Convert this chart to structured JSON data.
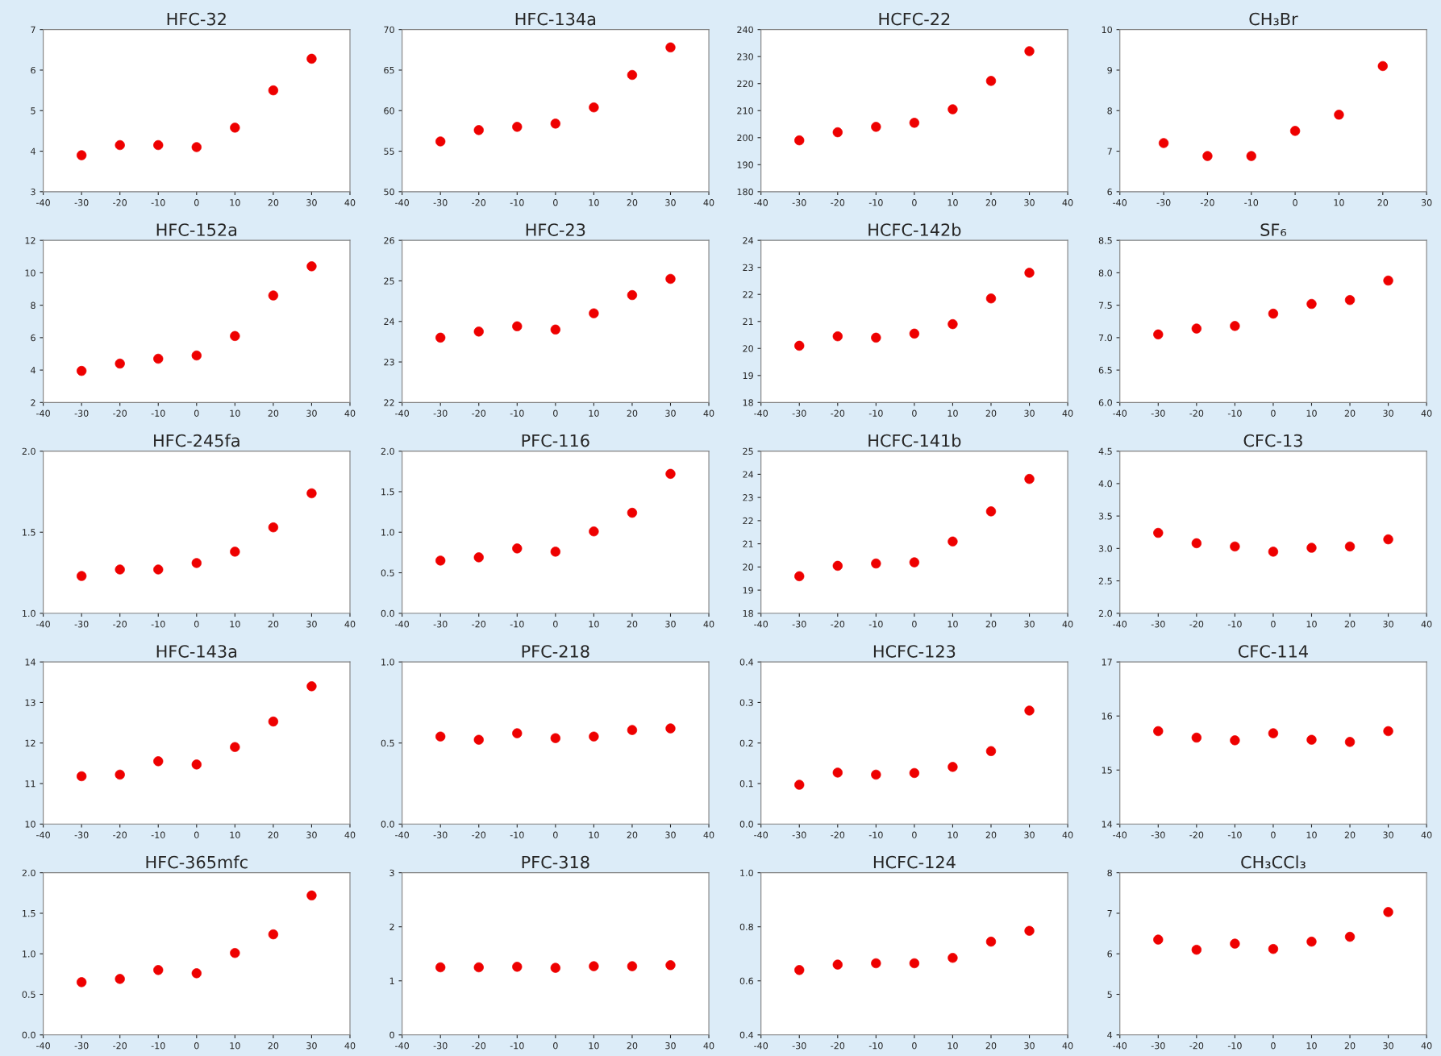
{
  "chart_data": [
    {
      "type": "scatter",
      "title": "HFC-32",
      "x": [
        -30,
        -20,
        -10,
        0,
        10,
        20,
        30
      ],
      "values": [
        3.9,
        4.15,
        4.15,
        4.1,
        4.58,
        5.5,
        6.28
      ],
      "color": "#ee0000",
      "marker": "circle",
      "xlim": [
        -40,
        40
      ],
      "xticks": [
        -40,
        -30,
        -20,
        -10,
        0,
        10,
        20,
        30,
        40
      ],
      "ylim": [
        3,
        7
      ],
      "yticks": [
        3,
        4,
        5,
        6,
        7
      ]
    },
    {
      "type": "scatter",
      "title": "HFC-134a",
      "x": [
        -30,
        -20,
        -10,
        0,
        10,
        20,
        30
      ],
      "values": [
        56.2,
        57.6,
        58.0,
        58.4,
        60.4,
        64.4,
        67.8
      ],
      "color": "#ee0000",
      "marker": "circle",
      "xlim": [
        -40,
        40
      ],
      "xticks": [
        -40,
        -30,
        -20,
        -10,
        0,
        10,
        20,
        30,
        40
      ],
      "ylim": [
        50,
        70
      ],
      "yticks": [
        50,
        55,
        60,
        65,
        70
      ]
    },
    {
      "type": "scatter",
      "title": "HCFC-22",
      "x": [
        -30,
        -20,
        -10,
        0,
        10,
        20,
        30
      ],
      "values": [
        199,
        202,
        204,
        205.5,
        210.5,
        221,
        232
      ],
      "color": "#ee0000",
      "marker": "circle",
      "xlim": [
        -40,
        40
      ],
      "xticks": [
        -40,
        -30,
        -20,
        -10,
        0,
        10,
        20,
        30,
        40
      ],
      "ylim": [
        180,
        240
      ],
      "yticks": [
        180,
        190,
        200,
        210,
        220,
        230,
        240
      ]
    },
    {
      "type": "scatter",
      "title": "CH₃Br",
      "x": [
        -30,
        -20,
        -10,
        0,
        10,
        20
      ],
      "values": [
        7.2,
        6.88,
        6.88,
        7.5,
        7.9,
        9.1
      ],
      "color": "#ee0000",
      "marker": "circle",
      "xlim": [
        -40,
        30
      ],
      "xticks": [
        -40,
        -30,
        -20,
        -10,
        0,
        10,
        20,
        30
      ],
      "ylim": [
        6,
        10
      ],
      "yticks": [
        6,
        7,
        8,
        9,
        10
      ]
    },
    {
      "type": "scatter",
      "title": "HFC-152a",
      "x": [
        -30,
        -20,
        -10,
        0,
        10,
        20,
        30
      ],
      "values": [
        3.95,
        4.4,
        4.7,
        4.9,
        6.1,
        8.6,
        10.4
      ],
      "color": "#ee0000",
      "marker": "circle",
      "xlim": [
        -40,
        40
      ],
      "xticks": [
        -40,
        -30,
        -20,
        -10,
        0,
        10,
        20,
        30,
        40
      ],
      "ylim": [
        2,
        12
      ],
      "yticks": [
        2,
        4,
        6,
        8,
        10,
        12
      ]
    },
    {
      "type": "scatter",
      "title": "HFC-23",
      "x": [
        -30,
        -20,
        -10,
        0,
        10,
        20,
        30
      ],
      "values": [
        23.6,
        23.75,
        23.88,
        23.8,
        24.2,
        24.65,
        25.05
      ],
      "color": "#ee0000",
      "marker": "circle",
      "xlim": [
        -40,
        40
      ],
      "xticks": [
        -40,
        -30,
        -20,
        -10,
        0,
        10,
        20,
        30,
        40
      ],
      "ylim": [
        22,
        26
      ],
      "yticks": [
        22,
        23,
        24,
        25,
        26
      ]
    },
    {
      "type": "scatter",
      "title": "HCFC-142b",
      "x": [
        -30,
        -20,
        -10,
        0,
        10,
        20,
        30
      ],
      "values": [
        20.1,
        20.45,
        20.4,
        20.55,
        20.9,
        21.85,
        22.8
      ],
      "color": "#ee0000",
      "marker": "circle",
      "xlim": [
        -40,
        40
      ],
      "xticks": [
        -40,
        -30,
        -20,
        -10,
        0,
        10,
        20,
        30,
        40
      ],
      "ylim": [
        18,
        24
      ],
      "yticks": [
        18,
        19,
        20,
        21,
        22,
        23,
        24
      ]
    },
    {
      "type": "scatter",
      "title": "SF₆",
      "x": [
        -30,
        -20,
        -10,
        0,
        10,
        20,
        30
      ],
      "values": [
        7.05,
        7.14,
        7.18,
        7.37,
        7.52,
        7.58,
        7.88
      ],
      "color": "#ee0000",
      "marker": "circle",
      "xlim": [
        -40,
        40
      ],
      "xticks": [
        -40,
        -30,
        -20,
        -10,
        0,
        10,
        20,
        30,
        40
      ],
      "ylim": [
        6,
        8.5
      ],
      "yticks": [
        {
          "value": 6,
          "label": "6.0"
        },
        6.5,
        {
          "value": 7,
          "label": "7.0"
        },
        7.5,
        {
          "value": 8,
          "label": "8.0"
        },
        8.5
      ]
    },
    {
      "type": "scatter",
      "title": "HFC-245fa",
      "x": [
        -30,
        -20,
        -10,
        0,
        10,
        20,
        30
      ],
      "values": [
        1.23,
        1.27,
        1.27,
        1.31,
        1.38,
        1.53,
        1.74
      ],
      "color": "#ee0000",
      "marker": "circle",
      "xlim": [
        -40,
        40
      ],
      "xticks": [
        -40,
        -30,
        -20,
        -10,
        0,
        10,
        20,
        30,
        40
      ],
      "ylim": [
        1,
        2
      ],
      "yticks": [
        {
          "value": 1,
          "label": "1.0"
        },
        1.5,
        {
          "value": 2,
          "label": "2.0"
        }
      ]
    },
    {
      "type": "scatter",
      "title": "PFC-116",
      "x": [
        -30,
        -20,
        -10,
        0,
        10,
        20,
        30
      ],
      "values": [
        0.65,
        0.69,
        0.8,
        0.76,
        1.01,
        1.24,
        1.72
      ],
      "color": "#ee0000",
      "marker": "circle",
      "xlim": [
        -40,
        40
      ],
      "xticks": [
        -40,
        -30,
        -20,
        -10,
        0,
        10,
        20,
        30,
        40
      ],
      "ylim": [
        0,
        2
      ],
      "yticks": [
        {
          "value": 0,
          "label": "0.0"
        },
        0.5,
        {
          "value": 1,
          "label": "1.0"
        },
        1.5,
        {
          "value": 2,
          "label": "2.0"
        }
      ]
    },
    {
      "type": "scatter",
      "title": "HCFC-141b",
      "x": [
        -30,
        -20,
        -10,
        0,
        10,
        20,
        30
      ],
      "values": [
        19.6,
        20.05,
        20.15,
        20.2,
        21.1,
        22.4,
        23.8
      ],
      "color": "#ee0000",
      "marker": "circle",
      "xlim": [
        -40,
        40
      ],
      "xticks": [
        -40,
        -30,
        -20,
        -10,
        0,
        10,
        20,
        30,
        40
      ],
      "ylim": [
        18,
        25
      ],
      "yticks": [
        18,
        19,
        20,
        21,
        22,
        23,
        24,
        25
      ]
    },
    {
      "type": "scatter",
      "title": "CFC-13",
      "x": [
        -30,
        -20,
        -10,
        0,
        10,
        20,
        30
      ],
      "values": [
        3.24,
        3.08,
        3.03,
        2.95,
        3.01,
        3.03,
        3.14
      ],
      "color": "#ee0000",
      "marker": "circle",
      "xlim": [
        -40,
        40
      ],
      "xticks": [
        -40,
        -30,
        -20,
        -10,
        0,
        10,
        20,
        30,
        40
      ],
      "ylim": [
        2,
        4.5
      ],
      "yticks": [
        {
          "value": 2,
          "label": "2.0"
        },
        2.5,
        {
          "value": 3,
          "label": "3.0"
        },
        3.5,
        {
          "value": 4,
          "label": "4.0"
        },
        4.5
      ]
    },
    {
      "type": "scatter",
      "title": "HFC-143a",
      "x": [
        -30,
        -20,
        -10,
        0,
        10,
        20,
        30
      ],
      "values": [
        11.18,
        11.22,
        11.55,
        11.47,
        11.9,
        12.53,
        13.4
      ],
      "color": "#ee0000",
      "marker": "circle",
      "xlim": [
        -40,
        40
      ],
      "xticks": [
        -40,
        -30,
        -20,
        -10,
        0,
        10,
        20,
        30,
        40
      ],
      "ylim": [
        10,
        14
      ],
      "yticks": [
        10,
        11,
        12,
        13,
        14
      ]
    },
    {
      "type": "scatter",
      "title": "PFC-218",
      "x": [
        -30,
        -20,
        -10,
        0,
        10,
        20,
        30
      ],
      "values": [
        0.54,
        0.52,
        0.56,
        0.53,
        0.54,
        0.58,
        0.59
      ],
      "color": "#ee0000",
      "marker": "circle",
      "xlim": [
        -40,
        40
      ],
      "xticks": [
        -40,
        -30,
        -20,
        -10,
        0,
        10,
        20,
        30,
        40
      ],
      "ylim": [
        0,
        1
      ],
      "yticks": [
        {
          "value": 0,
          "label": "0.0"
        },
        0.5,
        {
          "value": 1,
          "label": "1.0"
        }
      ]
    },
    {
      "type": "scatter",
      "title": "HCFC-123",
      "x": [
        -30,
        -20,
        -10,
        0,
        10,
        20,
        30
      ],
      "values": [
        0.097,
        0.127,
        0.122,
        0.126,
        0.141,
        0.18,
        0.28
      ],
      "color": "#ee0000",
      "marker": "circle",
      "xlim": [
        -40,
        40
      ],
      "xticks": [
        -40,
        -30,
        -20,
        -10,
        0,
        10,
        20,
        30,
        40
      ],
      "ylim": [
        0,
        0.4
      ],
      "yticks": [
        {
          "value": 0,
          "label": "0.0"
        },
        0.1,
        0.2,
        0.3,
        0.4
      ]
    },
    {
      "type": "scatter",
      "title": "CFC-114",
      "x": [
        -30,
        -20,
        -10,
        0,
        10,
        20,
        30
      ],
      "values": [
        15.72,
        15.6,
        15.55,
        15.68,
        15.56,
        15.52,
        15.72
      ],
      "color": "#ee0000",
      "marker": "circle",
      "xlim": [
        -40,
        40
      ],
      "xticks": [
        -40,
        -30,
        -20,
        -10,
        0,
        10,
        20,
        30,
        40
      ],
      "ylim": [
        14,
        17
      ],
      "yticks": [
        14,
        15,
        16,
        17
      ]
    },
    {
      "type": "scatter",
      "title": "HFC-365mfc",
      "x": [
        -30,
        -20,
        -10,
        0,
        10,
        20,
        30
      ],
      "values": [
        0.65,
        0.69,
        0.8,
        0.76,
        1.01,
        1.24,
        1.72
      ],
      "color": "#ee0000",
      "marker": "circle",
      "xlim": [
        -40,
        40
      ],
      "xticks": [
        -40,
        -30,
        -20,
        -10,
        0,
        10,
        20,
        30,
        40
      ],
      "ylim": [
        0,
        2
      ],
      "yticks": [
        {
          "value": 0,
          "label": "0.0"
        },
        0.5,
        {
          "value": 1,
          "label": "1.0"
        },
        1.5,
        {
          "value": 2,
          "label": "2.0"
        }
      ]
    },
    {
      "type": "scatter",
      "title": "PFC-318",
      "x": [
        -30,
        -20,
        -10,
        0,
        10,
        20,
        30
      ],
      "values": [
        1.25,
        1.25,
        1.26,
        1.24,
        1.27,
        1.27,
        1.29
      ],
      "color": "#ee0000",
      "marker": "circle",
      "xlim": [
        -40,
        40
      ],
      "xticks": [
        -40,
        -30,
        -20,
        -10,
        0,
        10,
        20,
        30,
        40
      ],
      "ylim": [
        0,
        3
      ],
      "yticks": [
        0,
        1,
        2,
        3
      ]
    },
    {
      "type": "scatter",
      "title": "HCFC-124",
      "x": [
        -30,
        -20,
        -10,
        0,
        10,
        20,
        30
      ],
      "values": [
        0.64,
        0.66,
        0.665,
        0.665,
        0.685,
        0.745,
        0.785
      ],
      "color": "#ee0000",
      "marker": "circle",
      "xlim": [
        -40,
        40
      ],
      "xticks": [
        -40,
        -30,
        -20,
        -10,
        0,
        10,
        20,
        30,
        40
      ],
      "ylim": [
        0.4,
        1
      ],
      "yticks": [
        0.4,
        0.6,
        0.8,
        {
          "value": 1,
          "label": "1.0"
        }
      ]
    },
    {
      "type": "scatter",
      "title": "CH₃CCl₃",
      "x": [
        -30,
        -20,
        -10,
        0,
        10,
        20,
        30
      ],
      "values": [
        6.35,
        6.1,
        6.25,
        6.12,
        6.3,
        6.42,
        7.03
      ],
      "color": "#ee0000",
      "marker": "circle",
      "xlim": [
        -40,
        40
      ],
      "xticks": [
        -40,
        -30,
        -20,
        -10,
        0,
        10,
        20,
        30,
        40
      ],
      "ylim": [
        4,
        8
      ],
      "yticks": [
        4,
        5,
        6,
        7,
        8
      ]
    }
  ]
}
